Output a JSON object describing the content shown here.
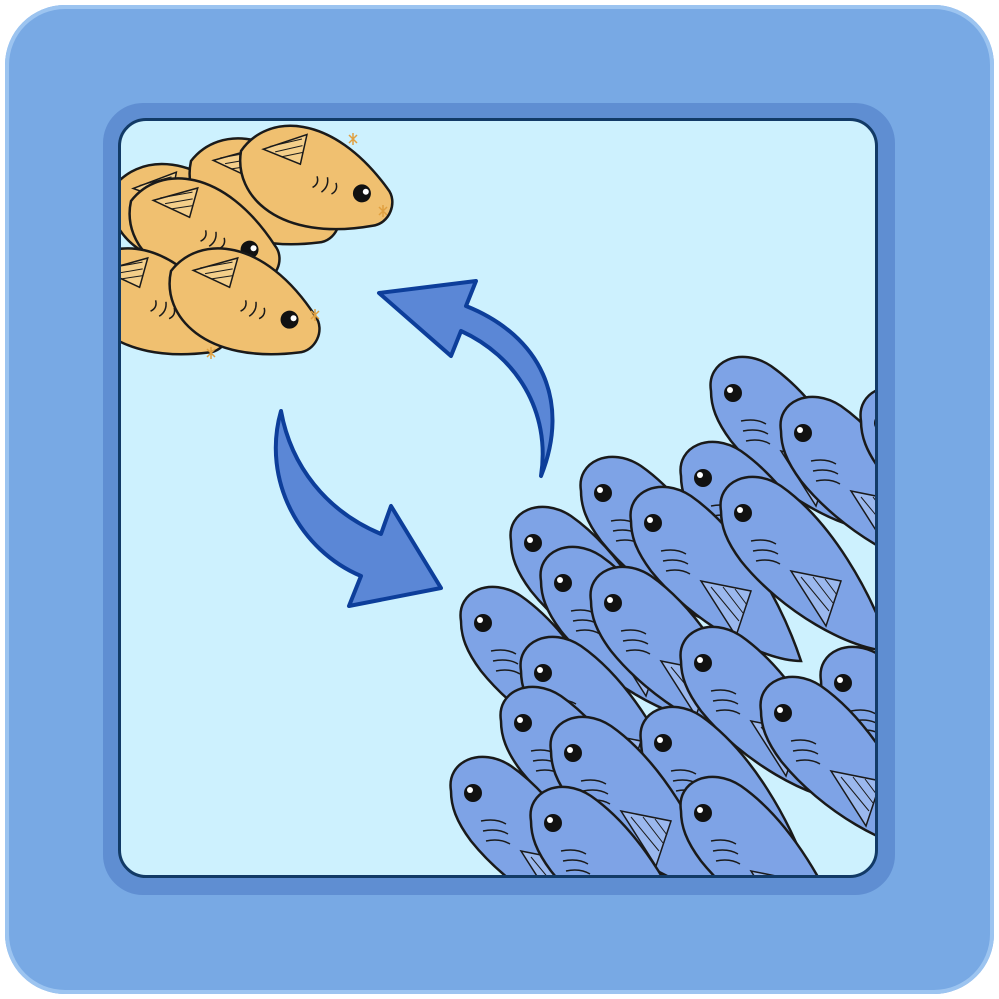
{
  "scene": {
    "frame_color": "#78a9e4",
    "frame_inner_color": "#5f8ed2",
    "water_color": "#cdf1fe",
    "orange_fish_color": "#f0c070",
    "blue_fish_color": "#7ea3e6",
    "arrow_color": "#5b87d6",
    "icons": [
      "orange-fish-school-icon",
      "blue-fish-school-icon",
      "cycle-arrow-up-icon",
      "cycle-arrow-down-icon"
    ]
  }
}
